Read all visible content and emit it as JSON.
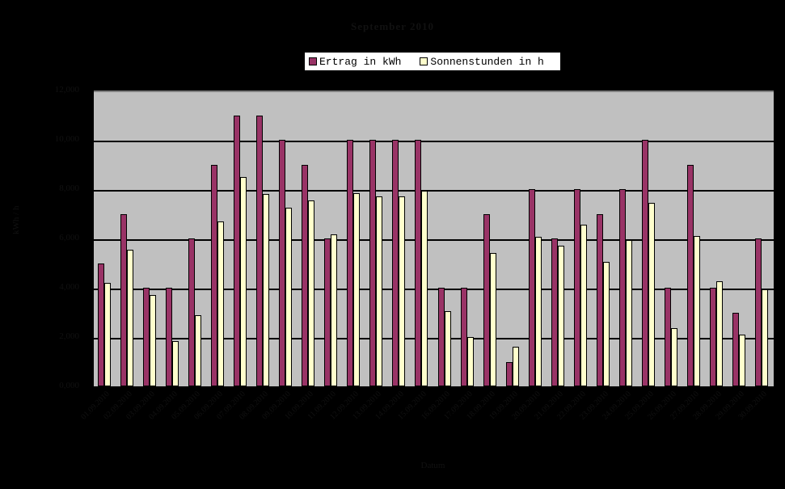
{
  "chart_data": {
    "type": "bar",
    "title": "September 2010",
    "xlabel": "Datum",
    "ylabel": "kWh / h",
    "ylim": [
      0,
      12
    ],
    "yticks": [
      "0,000",
      "2,000",
      "4,000",
      "6,000",
      "8,000",
      "10,000",
      "12,000"
    ],
    "grid": true,
    "legend_position": "top",
    "categories": [
      "01.09.2010",
      "02.09.2010",
      "03.09.2010",
      "04.09.2010",
      "05.09.2010",
      "06.09.2010",
      "07.09.2010",
      "08.09.2010",
      "09.09.2010",
      "10.09.2010",
      "11.09.2010",
      "12.09.2010",
      "13.09.2010",
      "14.09.2010",
      "15.09.2010",
      "16.09.2010",
      "17.09.2010",
      "18.09.2010",
      "19.09.2010",
      "20.09.2010",
      "21.09.2010",
      "22.09.2010",
      "23.09.2010",
      "24.09.2010",
      "25.09.2010",
      "26.09.2010",
      "27.09.2010",
      "28.09.2010",
      "29.09.2010",
      "30.09.2010"
    ],
    "series": [
      {
        "name": "Ertrag in kWh",
        "color": "#993366",
        "values": [
          5,
          7,
          4,
          4,
          6,
          9,
          11,
          11,
          10,
          9,
          6,
          10,
          10,
          10,
          10,
          4,
          4,
          7,
          1,
          8,
          6,
          8,
          7,
          8,
          10,
          4,
          9,
          4,
          3,
          6
        ]
      },
      {
        "name": "Sonnenstunden in h",
        "color": "#ffffcc",
        "values": [
          4.2,
          5.55,
          3.7,
          1.85,
          2.9,
          6.7,
          8.5,
          7.8,
          7.25,
          7.55,
          6.15,
          7.85,
          7.7,
          7.7,
          7.95,
          3.05,
          2.0,
          5.4,
          1.6,
          6.05,
          5.7,
          6.55,
          5.05,
          5.95,
          7.45,
          2.35,
          6.1,
          4.25,
          2.1,
          3.95
        ]
      }
    ]
  },
  "legend": {
    "items": [
      {
        "label": "Ertrag in kWh",
        "color": "#993366"
      },
      {
        "label": "Sonnenstunden in h",
        "color": "#ffffcc"
      }
    ]
  }
}
